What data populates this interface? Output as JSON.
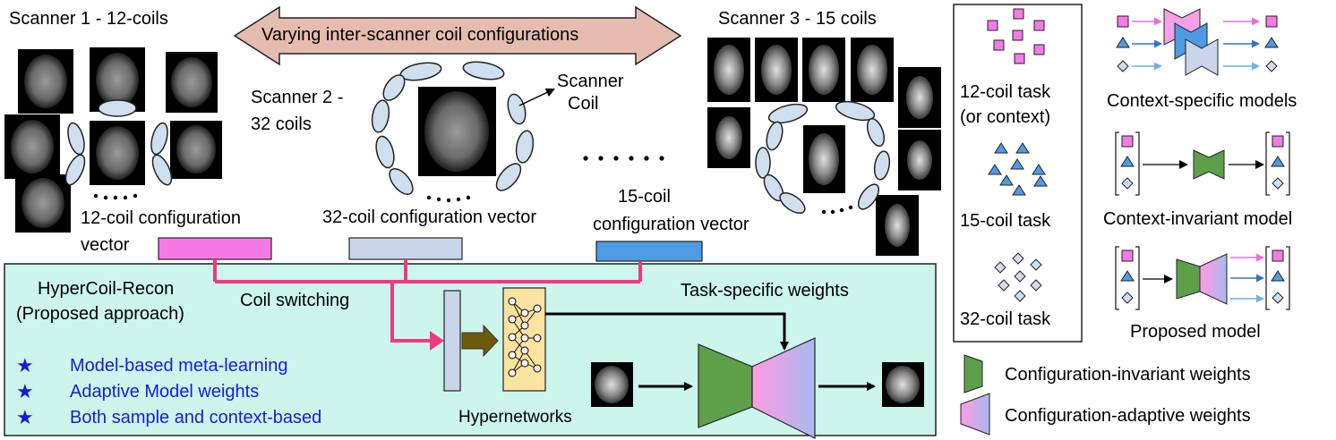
{
  "banner": "Varying  inter-scanner coil configurations",
  "scanners": {
    "s1": "Scanner 1 - 12-coils",
    "s2_line1": "Scanner 2 -",
    "s2_line2": "32 coils",
    "s3": "Scanner 3 - 15 coils",
    "coil_line1": "Scanner",
    "coil_line2": "Coil",
    "ellipsis": "......"
  },
  "vectors": {
    "v12_line1": "12-coil configuration",
    "v12_line2": "vector",
    "v32": "32-coil configuration vector",
    "v15_line1": "15-coil",
    "v15_line2": "configuration vector"
  },
  "proposal": {
    "title_line1": "HyperCoil-Recon",
    "title_line2": "(Proposed approach)",
    "coil_switching": "Coil switching",
    "task_weights": "Task-specific weights",
    "hypernetworks": "Hypernetworks",
    "bullets": [
      "Model-based meta-learning",
      "Adaptive Model weights",
      "Both sample and context-based"
    ],
    "star": "★"
  },
  "tasks": {
    "t12_line1": "12-coil task",
    "t12_line2": "(or context)",
    "t15": "15-coil task",
    "t32": "32-coil task"
  },
  "models": {
    "specific": "Context-specific models",
    "invariant": "Context-invariant model",
    "proposed": "Proposed model"
  },
  "legend": {
    "inv": "Configuration-invariant weights",
    "adapt": "Configuration-adaptive weights"
  },
  "colors": {
    "pink_vector": "#f47ae6",
    "light_vector": "#c9d6ea",
    "blue_vector": "#4e9be6",
    "magenta_line": "#f0397e",
    "panel_bg": "#ccf5ec",
    "coil_fill": "#cfdff0",
    "green": "#5ea04a",
    "hyper_fill": "#fbe3a0",
    "bullet_blue": "#1a1adc"
  }
}
